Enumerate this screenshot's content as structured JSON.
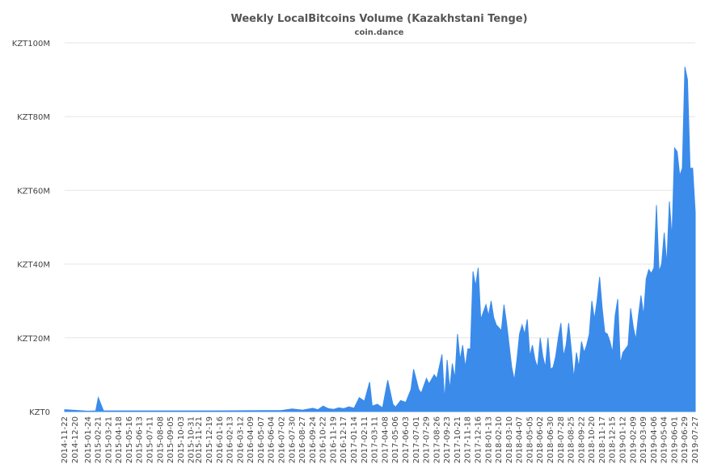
{
  "chart_data": {
    "type": "area",
    "title": "Weekly LocalBitcoins Volume (Kazakhstani Tenge)",
    "subtitle": "coin.dance",
    "xlabel": "",
    "ylabel": "",
    "ylim": [
      0,
      100000000
    ],
    "y_ticks": [
      {
        "value": 0,
        "label": "KZT0"
      },
      {
        "value": 20000000,
        "label": "KZT20M"
      },
      {
        "value": 40000000,
        "label": "KZT40M"
      },
      {
        "value": 60000000,
        "label": "KZT60M"
      },
      {
        "value": 80000000,
        "label": "KZT80M"
      },
      {
        "value": 100000000,
        "label": "KZT100M"
      }
    ],
    "x_tick_labels": [
      "2014-11-22",
      "2014-12-20",
      "2015-01-24",
      "2015-02-21",
      "2015-03-21",
      "2015-04-18",
      "2015-05-16",
      "2015-06-13",
      "2015-07-11",
      "2015-08-08",
      "2015-09-05",
      "2015-10-03",
      "2015-10-31",
      "2015-11-21",
      "2015-12-19",
      "2016-01-16",
      "2016-02-13",
      "2016-03-12",
      "2016-04-09",
      "2016-05-07",
      "2016-06-04",
      "2016-07-02",
      "2016-07-30",
      "2016-08-27",
      "2016-09-24",
      "2016-10-22",
      "2016-11-19",
      "2016-12-17",
      "2017-01-14",
      "2017-02-11",
      "2017-03-11",
      "2017-04-08",
      "2017-05-06",
      "2017-06-03",
      "2017-07-01",
      "2017-07-29",
      "2017-08-26",
      "2017-09-23",
      "2017-10-21",
      "2017-11-18",
      "2017-12-16",
      "2018-01-13",
      "2018-02-10",
      "2018-03-10",
      "2018-04-07",
      "2018-05-05",
      "2018-06-02",
      "2018-06-30",
      "2018-07-28",
      "2018-08-25",
      "2018-09-22",
      "2018-10-20",
      "2018-11-17",
      "2018-12-15",
      "2019-01-12",
      "2019-02-09",
      "2019-03-09",
      "2019-04-06",
      "2019-05-04",
      "2019-06-01",
      "2019-06-29",
      "2019-07-27"
    ],
    "series": [
      {
        "color": "#3b8beb",
        "points": [
          [
            "2014-11-22",
            0.5
          ],
          [
            "2015-01-24",
            0.1
          ],
          [
            "2015-02-14",
            0.2
          ],
          [
            "2015-02-21",
            3.8
          ],
          [
            "2015-03-07",
            0.2
          ],
          [
            "2015-08-08",
            0.2
          ],
          [
            "2016-01-16",
            0.2
          ],
          [
            "2016-07-02",
            0.3
          ],
          [
            "2016-07-30",
            0.7
          ],
          [
            "2016-08-27",
            0.4
          ],
          [
            "2016-09-24",
            0.9
          ],
          [
            "2016-10-08",
            0.5
          ],
          [
            "2016-10-22",
            1.5
          ],
          [
            "2016-11-05",
            0.8
          ],
          [
            "2016-11-19",
            0.6
          ],
          [
            "2016-12-03",
            1.0
          ],
          [
            "2016-12-17",
            0.8
          ],
          [
            "2016-12-31",
            1.3
          ],
          [
            "2017-01-14",
            0.9
          ],
          [
            "2017-01-28",
            3.8
          ],
          [
            "2017-02-11",
            2.8
          ],
          [
            "2017-02-25",
            8.0
          ],
          [
            "2017-03-04",
            1.5
          ],
          [
            "2017-03-18",
            2.0
          ],
          [
            "2017-04-01",
            1.0
          ],
          [
            "2017-04-15",
            8.5
          ],
          [
            "2017-04-29",
            2.0
          ],
          [
            "2017-05-06",
            1.2
          ],
          [
            "2017-05-20",
            3.0
          ],
          [
            "2017-06-03",
            2.5
          ],
          [
            "2017-06-17",
            6.0
          ],
          [
            "2017-06-24",
            11.5
          ],
          [
            "2017-07-08",
            6.0
          ],
          [
            "2017-07-15",
            5.0
          ],
          [
            "2017-07-29",
            9.0
          ],
          [
            "2017-08-05",
            7.5
          ],
          [
            "2017-08-19",
            10.0
          ],
          [
            "2017-08-26",
            9.0
          ],
          [
            "2017-09-09",
            15.5
          ],
          [
            "2017-09-16",
            3.0
          ],
          [
            "2017-09-23",
            14.0
          ],
          [
            "2017-09-30",
            6.0
          ],
          [
            "2017-10-07",
            13.0
          ],
          [
            "2017-10-14",
            9.0
          ],
          [
            "2017-10-21",
            21.0
          ],
          [
            "2017-10-28",
            14.0
          ],
          [
            "2017-11-04",
            18.0
          ],
          [
            "2017-11-11",
            12.0
          ],
          [
            "2017-11-18",
            17.0
          ],
          [
            "2017-11-25",
            17.0
          ],
          [
            "2017-12-02",
            38.0
          ],
          [
            "2017-12-09",
            34.0
          ],
          [
            "2017-12-16",
            39.0
          ],
          [
            "2017-12-23",
            25.0
          ],
          [
            "2017-12-30",
            27.0
          ],
          [
            "2018-01-06",
            29.0
          ],
          [
            "2018-01-13",
            26.0
          ],
          [
            "2018-01-20",
            30.0
          ],
          [
            "2018-01-27",
            25.5
          ],
          [
            "2018-02-03",
            23.5
          ],
          [
            "2018-02-17",
            22.0
          ],
          [
            "2018-02-24",
            29.0
          ],
          [
            "2018-03-03",
            24.0
          ],
          [
            "2018-03-10",
            18.0
          ],
          [
            "2018-03-17",
            12.0
          ],
          [
            "2018-03-24",
            8.5
          ],
          [
            "2018-03-31",
            14.0
          ],
          [
            "2018-04-07",
            21.0
          ],
          [
            "2018-04-14",
            23.5
          ],
          [
            "2018-04-21",
            21.0
          ],
          [
            "2018-04-28",
            25.0
          ],
          [
            "2018-05-05",
            15.0
          ],
          [
            "2018-05-12",
            18.0
          ],
          [
            "2018-05-19",
            14.0
          ],
          [
            "2018-05-26",
            12.0
          ],
          [
            "2018-06-02",
            20.0
          ],
          [
            "2018-06-09",
            15.0
          ],
          [
            "2018-06-16",
            12.0
          ],
          [
            "2018-06-23",
            20.0
          ],
          [
            "2018-06-30",
            11.5
          ],
          [
            "2018-07-07",
            12.0
          ],
          [
            "2018-07-14",
            15.0
          ],
          [
            "2018-07-21",
            20.0
          ],
          [
            "2018-07-28",
            24.0
          ],
          [
            "2018-08-04",
            15.0
          ],
          [
            "2018-08-11",
            18.0
          ],
          [
            "2018-08-18",
            24.0
          ],
          [
            "2018-08-25",
            17.0
          ],
          [
            "2018-09-01",
            9.0
          ],
          [
            "2018-09-08",
            16.0
          ],
          [
            "2018-09-15",
            12.0
          ],
          [
            "2018-09-22",
            19.0
          ],
          [
            "2018-09-29",
            16.0
          ],
          [
            "2018-10-06",
            18.0
          ],
          [
            "2018-10-13",
            21.0
          ],
          [
            "2018-10-20",
            30.0
          ],
          [
            "2018-10-27",
            25.0
          ],
          [
            "2018-11-03",
            30.0
          ],
          [
            "2018-11-10",
            36.5
          ],
          [
            "2018-11-17",
            28.0
          ],
          [
            "2018-11-24",
            21.5
          ],
          [
            "2018-12-01",
            21.0
          ],
          [
            "2018-12-08",
            19.0
          ],
          [
            "2018-12-15",
            16.0
          ],
          [
            "2018-12-22",
            26.0
          ],
          [
            "2018-12-29",
            30.5
          ],
          [
            "2019-01-05",
            13.0
          ],
          [
            "2019-01-12",
            16.0
          ],
          [
            "2019-01-19",
            17.0
          ],
          [
            "2019-01-26",
            18.0
          ],
          [
            "2019-02-02",
            28.0
          ],
          [
            "2019-02-09",
            23.0
          ],
          [
            "2019-02-16",
            19.5
          ],
          [
            "2019-02-23",
            26.0
          ],
          [
            "2019-03-02",
            31.5
          ],
          [
            "2019-03-09",
            26.0
          ],
          [
            "2019-03-16",
            36.0
          ],
          [
            "2019-03-23",
            38.5
          ],
          [
            "2019-03-30",
            37.5
          ],
          [
            "2019-04-06",
            39.0
          ],
          [
            "2019-04-13",
            56.0
          ],
          [
            "2019-04-20",
            38.0
          ],
          [
            "2019-04-27",
            40.0
          ],
          [
            "2019-05-04",
            48.5
          ],
          [
            "2019-05-11",
            40.0
          ],
          [
            "2019-05-18",
            57.0
          ],
          [
            "2019-05-25",
            47.0
          ],
          [
            "2019-06-01",
            71.5
          ],
          [
            "2019-06-08",
            70.5
          ],
          [
            "2019-06-15",
            64.0
          ],
          [
            "2019-06-22",
            66.0
          ],
          [
            "2019-06-29",
            93.5
          ],
          [
            "2019-07-06",
            90.0
          ],
          [
            "2019-07-13",
            66.0
          ],
          [
            "2019-07-20",
            66.0
          ],
          [
            "2019-07-27",
            54.0
          ]
        ]
      }
    ],
    "grid": true,
    "legend": "none"
  }
}
